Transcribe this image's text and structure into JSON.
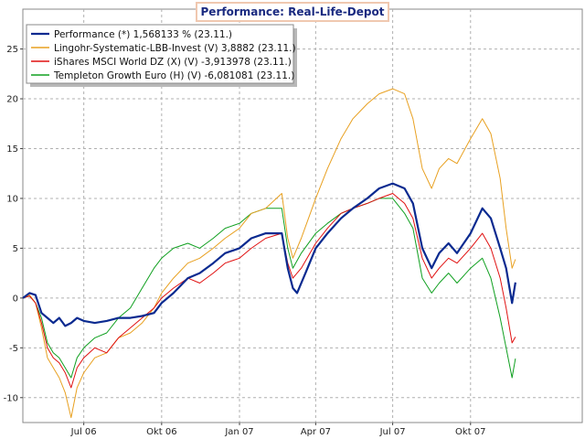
{
  "chart_data": {
    "type": "line",
    "title": "Performance: Real-Life-Depot",
    "xlabel": "",
    "ylabel": "",
    "ylim": [
      -12.5,
      29
    ],
    "yticks": [
      -10,
      -5,
      0,
      5,
      10,
      15,
      20,
      25
    ],
    "x_tick_labels": [
      "Jul 06",
      "Okt 06",
      "Jan 07",
      "Apr 07",
      "Jul 07",
      "Okt 07"
    ],
    "x_tick_dates": [
      "2006-07-01",
      "2006-10-01",
      "2007-01-01",
      "2007-04-01",
      "2007-07-01",
      "2007-10-01"
    ],
    "xlim": [
      "2006-04-20",
      "2008-02-10"
    ],
    "grid": true,
    "legend_position": "top-left",
    "series": [
      {
        "name": "Performance (*) 1,568133 % (23.11.)",
        "color": "#0a2a90",
        "points": [
          [
            "2006-04-20",
            0
          ],
          [
            "2006-04-28",
            0.5
          ],
          [
            "2006-05-05",
            0.3
          ],
          [
            "2006-05-12",
            -1.5
          ],
          [
            "2006-05-19",
            -2.0
          ],
          [
            "2006-05-26",
            -2.5
          ],
          [
            "2006-06-02",
            -2.0
          ],
          [
            "2006-06-09",
            -2.8
          ],
          [
            "2006-06-16",
            -2.5
          ],
          [
            "2006-06-23",
            -2.0
          ],
          [
            "2006-07-01",
            -2.3
          ],
          [
            "2006-07-14",
            -2.5
          ],
          [
            "2006-07-28",
            -2.3
          ],
          [
            "2006-08-11",
            -2.0
          ],
          [
            "2006-08-25",
            -2.0
          ],
          [
            "2006-09-08",
            -1.8
          ],
          [
            "2006-09-22",
            -1.5
          ],
          [
            "2006-10-01",
            -0.5
          ],
          [
            "2006-10-15",
            0.5
          ],
          [
            "2006-11-01",
            2.0
          ],
          [
            "2006-11-15",
            2.5
          ],
          [
            "2006-12-01",
            3.5
          ],
          [
            "2006-12-15",
            4.5
          ],
          [
            "2007-01-01",
            5.0
          ],
          [
            "2007-01-15",
            6.0
          ],
          [
            "2007-02-01",
            6.5
          ],
          [
            "2007-02-20",
            6.5
          ],
          [
            "2007-02-27",
            3.0
          ],
          [
            "2007-03-05",
            1.0
          ],
          [
            "2007-03-10",
            0.5
          ],
          [
            "2007-03-20",
            2.5
          ],
          [
            "2007-04-01",
            5.0
          ],
          [
            "2007-04-15",
            6.5
          ],
          [
            "2007-05-01",
            8.0
          ],
          [
            "2007-05-15",
            9.0
          ],
          [
            "2007-06-01",
            10.0
          ],
          [
            "2007-06-15",
            11.0
          ],
          [
            "2007-07-01",
            11.5
          ],
          [
            "2007-07-15",
            11.0
          ],
          [
            "2007-07-25",
            9.5
          ],
          [
            "2007-08-05",
            5.0
          ],
          [
            "2007-08-16",
            3.0
          ],
          [
            "2007-08-25",
            4.5
          ],
          [
            "2007-09-05",
            5.5
          ],
          [
            "2007-09-15",
            4.5
          ],
          [
            "2007-10-01",
            6.5
          ],
          [
            "2007-10-15",
            9.0
          ],
          [
            "2007-10-25",
            8.0
          ],
          [
            "2007-11-05",
            5.0
          ],
          [
            "2007-11-12",
            3.0
          ],
          [
            "2007-11-19",
            -0.5
          ],
          [
            "2007-11-23",
            1.57
          ]
        ]
      },
      {
        "name": "Lingohr-Systematic-LBB-Invest (V) 3,8882 (23.11.)",
        "color": "#e8a020",
        "points": [
          [
            "2006-04-20",
            0
          ],
          [
            "2006-04-28",
            0.3
          ],
          [
            "2006-05-05",
            -0.5
          ],
          [
            "2006-05-12",
            -3.0
          ],
          [
            "2006-05-19",
            -6.0
          ],
          [
            "2006-05-26",
            -7.0
          ],
          [
            "2006-06-02",
            -8.0
          ],
          [
            "2006-06-09",
            -9.5
          ],
          [
            "2006-06-16",
            -12.0
          ],
          [
            "2006-06-23",
            -9.0
          ],
          [
            "2006-07-01",
            -7.5
          ],
          [
            "2006-07-14",
            -6.0
          ],
          [
            "2006-07-28",
            -5.5
          ],
          [
            "2006-08-11",
            -4.0
          ],
          [
            "2006-08-25",
            -3.5
          ],
          [
            "2006-09-08",
            -2.5
          ],
          [
            "2006-09-22",
            -1.0
          ],
          [
            "2006-10-01",
            0.5
          ],
          [
            "2006-10-15",
            2.0
          ],
          [
            "2006-11-01",
            3.5
          ],
          [
            "2006-11-15",
            4.0
          ],
          [
            "2006-12-01",
            5.0
          ],
          [
            "2006-12-15",
            6.0
          ],
          [
            "2007-01-01",
            7.0
          ],
          [
            "2007-01-15",
            8.5
          ],
          [
            "2007-02-01",
            9.0
          ],
          [
            "2007-02-20",
            10.5
          ],
          [
            "2007-02-27",
            6.0
          ],
          [
            "2007-03-05",
            4.0
          ],
          [
            "2007-03-15",
            6.0
          ],
          [
            "2007-04-01",
            10.0
          ],
          [
            "2007-04-15",
            13.0
          ],
          [
            "2007-05-01",
            16.0
          ],
          [
            "2007-05-15",
            18.0
          ],
          [
            "2007-06-01",
            19.5
          ],
          [
            "2007-06-15",
            20.5
          ],
          [
            "2007-07-01",
            21.0
          ],
          [
            "2007-07-15",
            20.5
          ],
          [
            "2007-07-25",
            18.0
          ],
          [
            "2007-08-05",
            13.0
          ],
          [
            "2007-08-16",
            11.0
          ],
          [
            "2007-08-25",
            13.0
          ],
          [
            "2007-09-05",
            14.0
          ],
          [
            "2007-09-15",
            13.5
          ],
          [
            "2007-10-01",
            16.0
          ],
          [
            "2007-10-15",
            18.0
          ],
          [
            "2007-10-25",
            16.5
          ],
          [
            "2007-11-05",
            12.0
          ],
          [
            "2007-11-12",
            7.0
          ],
          [
            "2007-11-19",
            3.0
          ],
          [
            "2007-11-23",
            3.89
          ]
        ]
      },
      {
        "name": "iShares MSCI World DZ (X) (V) -3,913978 (23.11.)",
        "color": "#e01010",
        "points": [
          [
            "2006-04-20",
            0
          ],
          [
            "2006-04-28",
            0.2
          ],
          [
            "2006-05-05",
            -0.5
          ],
          [
            "2006-05-12",
            -2.5
          ],
          [
            "2006-05-19",
            -5.0
          ],
          [
            "2006-05-26",
            -6.0
          ],
          [
            "2006-06-02",
            -6.5
          ],
          [
            "2006-06-09",
            -7.5
          ],
          [
            "2006-06-16",
            -9.0
          ],
          [
            "2006-06-23",
            -7.0
          ],
          [
            "2006-07-01",
            -6.0
          ],
          [
            "2006-07-14",
            -5.0
          ],
          [
            "2006-07-28",
            -5.5
          ],
          [
            "2006-08-11",
            -4.0
          ],
          [
            "2006-08-25",
            -3.0
          ],
          [
            "2006-09-08",
            -2.0
          ],
          [
            "2006-09-22",
            -1.0
          ],
          [
            "2006-10-01",
            0.0
          ],
          [
            "2006-10-15",
            1.0
          ],
          [
            "2006-11-01",
            2.0
          ],
          [
            "2006-11-15",
            1.5
          ],
          [
            "2006-12-01",
            2.5
          ],
          [
            "2006-12-15",
            3.5
          ],
          [
            "2007-01-01",
            4.0
          ],
          [
            "2007-01-15",
            5.0
          ],
          [
            "2007-02-01",
            6.0
          ],
          [
            "2007-02-20",
            6.5
          ],
          [
            "2007-02-27",
            3.5
          ],
          [
            "2007-03-05",
            2.0
          ],
          [
            "2007-03-15",
            3.0
          ],
          [
            "2007-04-01",
            5.5
          ],
          [
            "2007-04-15",
            7.0
          ],
          [
            "2007-05-01",
            8.5
          ],
          [
            "2007-05-15",
            9.0
          ],
          [
            "2007-06-01",
            9.5
          ],
          [
            "2007-06-15",
            10.0
          ],
          [
            "2007-07-01",
            10.5
          ],
          [
            "2007-07-15",
            9.5
          ],
          [
            "2007-07-25",
            8.0
          ],
          [
            "2007-08-05",
            4.0
          ],
          [
            "2007-08-16",
            2.0
          ],
          [
            "2007-08-25",
            3.0
          ],
          [
            "2007-09-05",
            4.0
          ],
          [
            "2007-09-15",
            3.5
          ],
          [
            "2007-10-01",
            5.0
          ],
          [
            "2007-10-15",
            6.5
          ],
          [
            "2007-10-25",
            5.0
          ],
          [
            "2007-11-05",
            2.0
          ],
          [
            "2007-11-12",
            -1.0
          ],
          [
            "2007-11-19",
            -4.5
          ],
          [
            "2007-11-23",
            -3.91
          ]
        ]
      },
      {
        "name": "Templeton Growth Euro (H) (V) -6,081081 (23.11.)",
        "color": "#10a020",
        "points": [
          [
            "2006-04-20",
            0
          ],
          [
            "2006-04-28",
            0.2
          ],
          [
            "2006-05-05",
            -0.5
          ],
          [
            "2006-05-12",
            -2.0
          ],
          [
            "2006-05-19",
            -4.5
          ],
          [
            "2006-05-26",
            -5.5
          ],
          [
            "2006-06-02",
            -6.0
          ],
          [
            "2006-06-09",
            -7.0
          ],
          [
            "2006-06-16",
            -8.0
          ],
          [
            "2006-06-23",
            -6.0
          ],
          [
            "2006-07-01",
            -5.0
          ],
          [
            "2006-07-14",
            -4.0
          ],
          [
            "2006-07-28",
            -3.5
          ],
          [
            "2006-08-11",
            -2.0
          ],
          [
            "2006-08-25",
            -1.0
          ],
          [
            "2006-09-08",
            1.0
          ],
          [
            "2006-09-22",
            3.0
          ],
          [
            "2006-10-01",
            4.0
          ],
          [
            "2006-10-15",
            5.0
          ],
          [
            "2006-11-01",
            5.5
          ],
          [
            "2006-11-15",
            5.0
          ],
          [
            "2006-12-01",
            6.0
          ],
          [
            "2006-12-15",
            7.0
          ],
          [
            "2007-01-01",
            7.5
          ],
          [
            "2007-01-15",
            8.5
          ],
          [
            "2007-02-01",
            9.0
          ],
          [
            "2007-02-20",
            9.0
          ],
          [
            "2007-02-27",
            5.0
          ],
          [
            "2007-03-05",
            3.0
          ],
          [
            "2007-03-15",
            4.5
          ],
          [
            "2007-04-01",
            6.5
          ],
          [
            "2007-04-15",
            7.5
          ],
          [
            "2007-05-01",
            8.5
          ],
          [
            "2007-05-15",
            9.0
          ],
          [
            "2007-06-01",
            9.5
          ],
          [
            "2007-06-15",
            10.0
          ],
          [
            "2007-07-01",
            10.0
          ],
          [
            "2007-07-15",
            8.5
          ],
          [
            "2007-07-25",
            7.0
          ],
          [
            "2007-08-05",
            2.0
          ],
          [
            "2007-08-16",
            0.5
          ],
          [
            "2007-08-25",
            1.5
          ],
          [
            "2007-09-05",
            2.5
          ],
          [
            "2007-09-15",
            1.5
          ],
          [
            "2007-10-01",
            3.0
          ],
          [
            "2007-10-15",
            4.0
          ],
          [
            "2007-10-25",
            2.0
          ],
          [
            "2007-11-05",
            -2.0
          ],
          [
            "2007-11-12",
            -5.0
          ],
          [
            "2007-11-19",
            -8.0
          ],
          [
            "2007-11-23",
            -6.08
          ]
        ]
      }
    ]
  }
}
